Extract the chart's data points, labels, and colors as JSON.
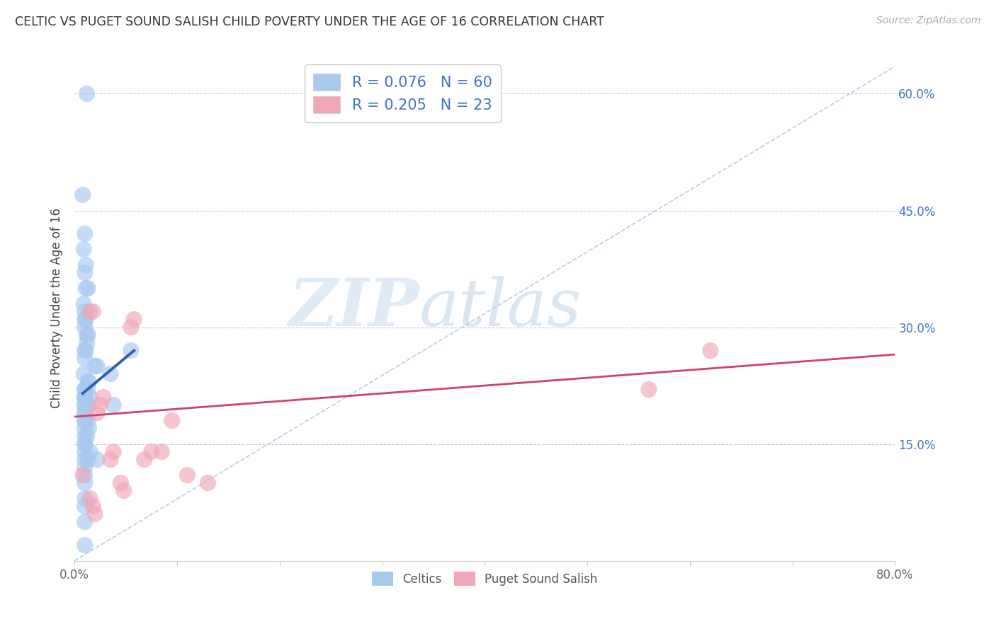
{
  "title": "CELTIC VS PUGET SOUND SALISH CHILD POVERTY UNDER THE AGE OF 16 CORRELATION CHART",
  "source": "Source: ZipAtlas.com",
  "ylabel": "Child Poverty Under the Age of 16",
  "xlim": [
    0,
    0.8
  ],
  "ylim": [
    0,
    0.65
  ],
  "y_ticks": [
    0.0,
    0.15,
    0.3,
    0.45,
    0.6
  ],
  "watermark_zip": "ZIP",
  "watermark_atlas": "atlas",
  "celtics_R": 0.076,
  "celtics_N": 60,
  "puget_R": 0.205,
  "puget_N": 23,
  "celtics_color": "#A8C8F0",
  "puget_color": "#F0A8B8",
  "celtics_line_color": "#3060B0",
  "puget_line_color": "#D04070",
  "dashed_line_color": "#A8C8F0",
  "celtics_x": [
    0.012,
    0.008,
    0.01,
    0.009,
    0.011,
    0.01,
    0.013,
    0.011,
    0.009,
    0.01,
    0.01,
    0.011,
    0.01,
    0.012,
    0.013,
    0.012,
    0.01,
    0.011,
    0.01,
    0.02,
    0.022,
    0.009,
    0.013,
    0.014,
    0.01,
    0.013,
    0.01,
    0.01,
    0.01,
    0.01,
    0.015,
    0.01,
    0.01,
    0.014,
    0.035,
    0.038,
    0.055,
    0.01,
    0.01,
    0.01,
    0.01,
    0.013,
    0.014,
    0.01,
    0.012,
    0.01,
    0.01,
    0.01,
    0.01,
    0.015,
    0.01,
    0.013,
    0.01,
    0.01,
    0.01,
    0.01,
    0.01,
    0.022,
    0.01,
    0.01
  ],
  "celtics_y": [
    0.6,
    0.47,
    0.42,
    0.4,
    0.38,
    0.37,
    0.35,
    0.35,
    0.33,
    0.32,
    0.31,
    0.31,
    0.3,
    0.29,
    0.29,
    0.28,
    0.27,
    0.27,
    0.26,
    0.25,
    0.25,
    0.24,
    0.23,
    0.23,
    0.22,
    0.22,
    0.22,
    0.21,
    0.21,
    0.21,
    0.21,
    0.2,
    0.2,
    0.2,
    0.24,
    0.2,
    0.27,
    0.19,
    0.19,
    0.18,
    0.18,
    0.18,
    0.17,
    0.17,
    0.16,
    0.16,
    0.15,
    0.15,
    0.14,
    0.14,
    0.13,
    0.13,
    0.12,
    0.11,
    0.1,
    0.08,
    0.07,
    0.13,
    0.05,
    0.02
  ],
  "puget_x": [
    0.008,
    0.015,
    0.018,
    0.022,
    0.025,
    0.028,
    0.035,
    0.038,
    0.045,
    0.048,
    0.055,
    0.058,
    0.068,
    0.075,
    0.085,
    0.095,
    0.11,
    0.13,
    0.56,
    0.62,
    0.015,
    0.018,
    0.02
  ],
  "puget_y": [
    0.11,
    0.32,
    0.32,
    0.19,
    0.2,
    0.21,
    0.13,
    0.14,
    0.1,
    0.09,
    0.3,
    0.31,
    0.13,
    0.14,
    0.14,
    0.18,
    0.11,
    0.1,
    0.22,
    0.27,
    0.08,
    0.07,
    0.06
  ],
  "celtics_line_x": [
    0.008,
    0.058
  ],
  "celtics_line_y": [
    0.215,
    0.27
  ],
  "puget_line_x": [
    0.0,
    0.8
  ],
  "puget_line_y": [
    0.185,
    0.265
  ]
}
